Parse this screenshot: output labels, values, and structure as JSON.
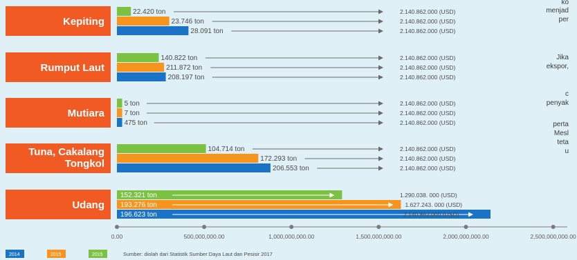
{
  "chart_data": {
    "type": "bar",
    "orientation": "horizontal",
    "categories": [
      "Kepiting",
      "Rumput Laut",
      "Mutiara",
      "Tuna, Cakalang Tongkol",
      "Udang"
    ],
    "category_lines": [
      [
        "Kepiting"
      ],
      [
        "Rumput Laut"
      ],
      [
        "Mutiara"
      ],
      [
        "Tuna, Cakalang",
        "Tongkol"
      ],
      [
        "Udang"
      ]
    ],
    "series": [
      {
        "name": "2015",
        "color": "#7cc242",
        "volume_labels": [
          "22.420 ton",
          "140.822 ton",
          "5 ton",
          "104.714 ton",
          "152.321 ton"
        ],
        "value_labels": [
          "2.140.862.000 (USD)",
          "2.140.862.000 (USD)",
          "2.140.862.000 (USD)",
          "2.140.862.000 (USD)",
          "1.290.038. 000 (USD)"
        ],
        "values": [
          2140862000,
          2140862000,
          2140862000,
          2140862000,
          1290038000
        ],
        "bar_values": [
          80000000,
          240000000,
          30000000,
          510000000,
          1290038000
        ]
      },
      {
        "name": "2015",
        "color": "#f7941d",
        "volume_labels": [
          "23.746 ton",
          "211.872 ton",
          "7 ton",
          "172.293 ton",
          "193.276 ton"
        ],
        "value_labels": [
          "2.140.862.000 (USD)",
          "2.140.862.000 (USD)",
          "2.140.862.000 (USD)",
          "2.140.862.000 (USD)",
          "1.627.243. 000 (USD)"
        ],
        "values": [
          2140862000,
          2140862000,
          2140862000,
          2140862000,
          1627243000
        ],
        "bar_values": [
          300000000,
          270000000,
          30000000,
          810000000,
          1627243000
        ]
      },
      {
        "name": "2014",
        "color": "#1a73c6",
        "volume_labels": [
          "28.091 ton",
          "208.197 ton",
          "475 ton",
          "206.553 ton",
          "196.623 ton"
        ],
        "value_labels": [
          "2.140.862.000 (USD)",
          "2.140.862.000 (USD)",
          "2.140.862.000 (USD)",
          "2.140.862.000 (USD)",
          "2.140.862.000 (USD)"
        ],
        "values": [
          2140862000,
          2140862000,
          2140862000,
          2140862000,
          2140862000
        ],
        "bar_values": [
          410000000,
          280000000,
          30000000,
          880000000,
          2140862000
        ]
      }
    ],
    "x_ticks": [
      0,
      500000000,
      1000000000,
      1500000000,
      2000000000,
      2500000000
    ],
    "x_tick_labels": [
      "0.00",
      "500,000,000.00",
      "1,000,000,000.00",
      "1,500,000,000.00",
      "2,000,000,000.00",
      "2,500,000,000.00"
    ],
    "xlim": [
      0,
      2500000000
    ],
    "legend": {
      "placement": "bottom-left",
      "labels": [
        "2014",
        "2015",
        "2015"
      ],
      "colors": [
        "#1a73c6",
        "#f7941d",
        "#7cc242"
      ]
    },
    "source": "Sumber: diolah dari Statistik Sumber Daya Laut dan Pesisir 2017",
    "grid": false
  },
  "side_text": [
    "ko",
    "menjad",
    "per",
    "Jika",
    "ekspor,",
    "c",
    "penyak",
    "perta",
    "Mesl",
    "teta",
    "u"
  ],
  "colors": {
    "category_box": "#f15a22",
    "arrow": "#6b6b6b",
    "axis": "#7a7a7a",
    "background": "#dff0f6"
  }
}
